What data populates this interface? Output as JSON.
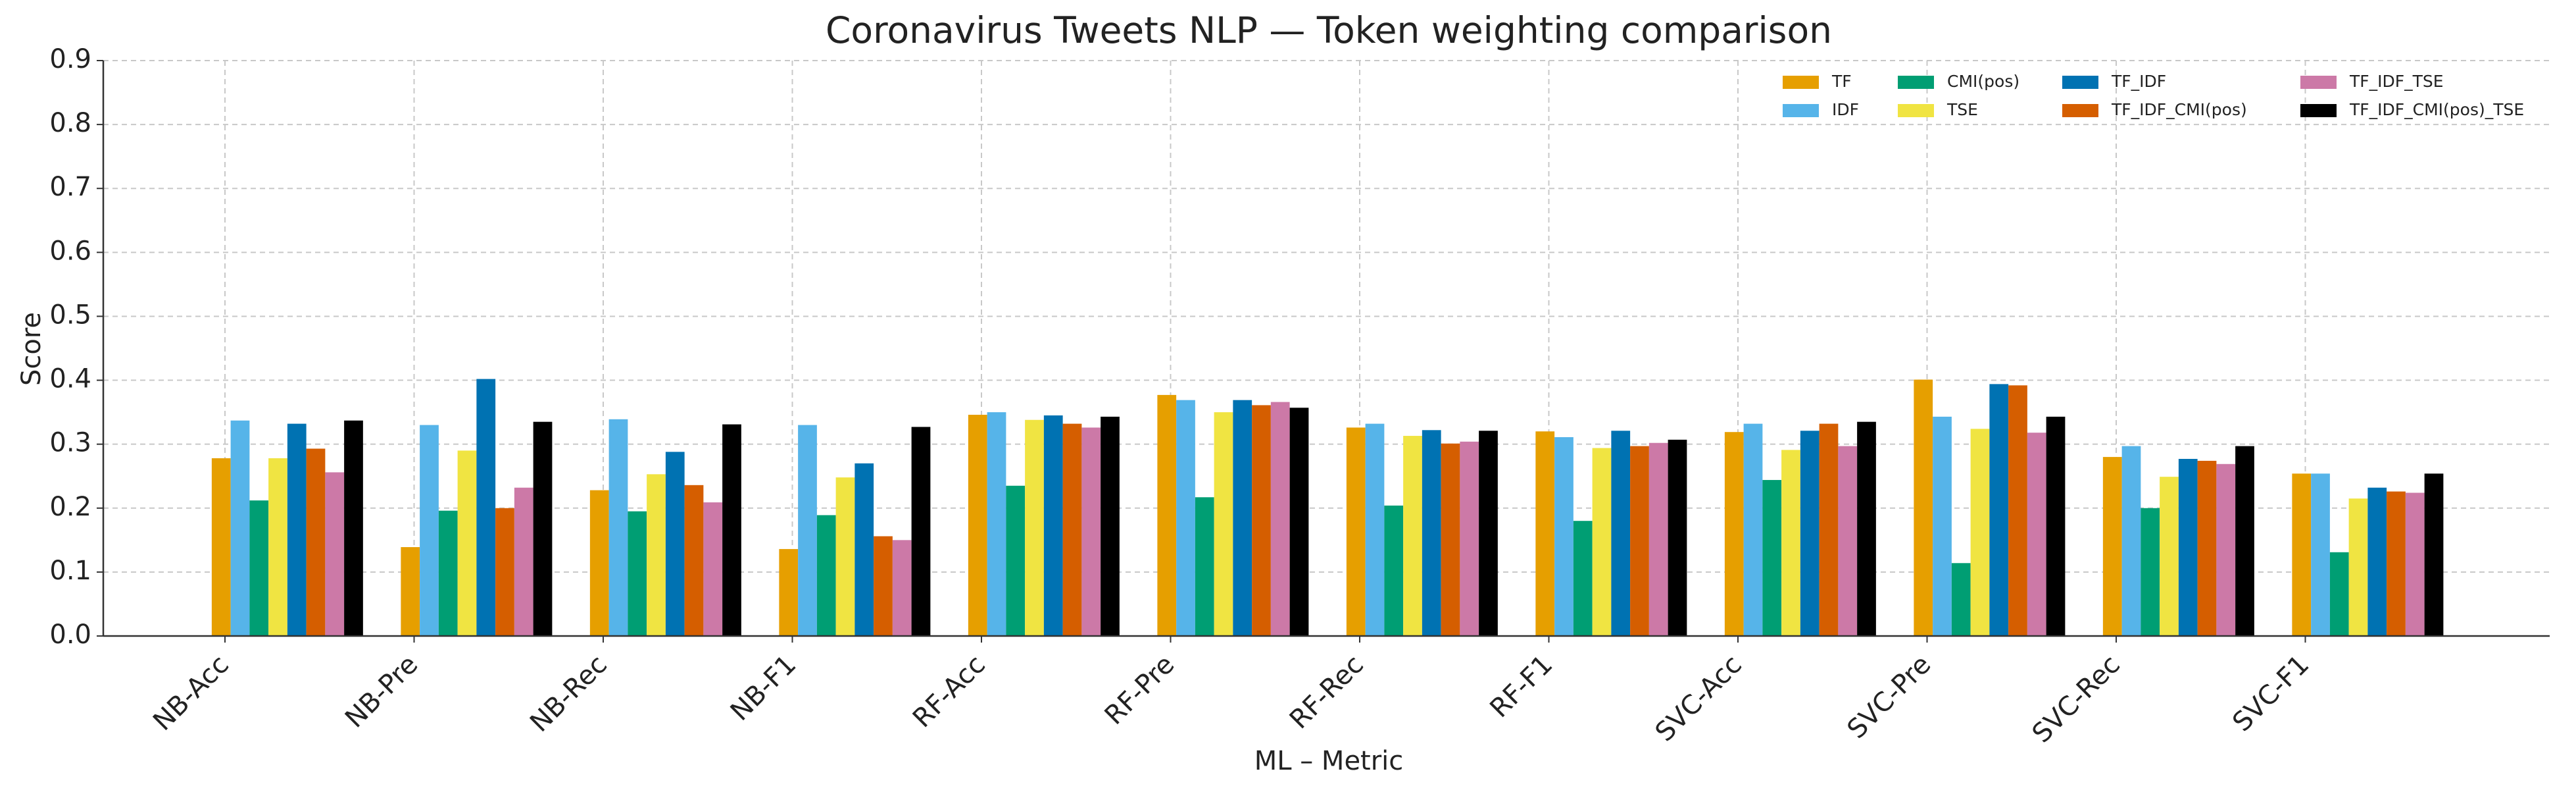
{
  "chart_data": {
    "type": "bar",
    "title": "Coronavirus Tweets NLP — Token weighting comparison",
    "x_label": "ML – Metric",
    "y_label": "Score",
    "categories": [
      "NB-Acc",
      "NB-Pre",
      "NB-Rec",
      "NB-F1",
      "RF-Acc",
      "RF-Pre",
      "RF-Rec",
      "RF-F1",
      "SVC-Acc",
      "SVC-Pre",
      "SVC-Rec",
      "SVC-F1"
    ],
    "series": [
      {
        "name": "TF",
        "color": "#E69F00",
        "values": [
          0.278,
          0.139,
          0.228,
          0.136,
          0.346,
          0.377,
          0.326,
          0.32,
          0.319,
          0.401,
          0.28,
          0.254
        ]
      },
      {
        "name": "IDF",
        "color": "#56B4E9",
        "values": [
          0.337,
          0.33,
          0.339,
          0.33,
          0.35,
          0.369,
          0.332,
          0.311,
          0.332,
          0.343,
          0.297,
          0.254
        ]
      },
      {
        "name": "CMI(pos)",
        "color": "#009E73",
        "values": [
          0.212,
          0.196,
          0.195,
          0.189,
          0.235,
          0.217,
          0.204,
          0.18,
          0.244,
          0.114,
          0.2,
          0.131
        ]
      },
      {
        "name": "TSE",
        "color": "#F0E442",
        "values": [
          0.278,
          0.29,
          0.253,
          0.248,
          0.338,
          0.35,
          0.313,
          0.294,
          0.291,
          0.324,
          0.249,
          0.215
        ]
      },
      {
        "name": "TF_IDF",
        "color": "#0072B2",
        "values": [
          0.332,
          0.402,
          0.288,
          0.27,
          0.345,
          0.369,
          0.322,
          0.321,
          0.321,
          0.394,
          0.277,
          0.232
        ]
      },
      {
        "name": "TF_IDF_CMI(pos)",
        "color": "#D55E00",
        "values": [
          0.293,
          0.2,
          0.236,
          0.156,
          0.332,
          0.361,
          0.301,
          0.297,
          0.332,
          0.392,
          0.274,
          0.226
        ]
      },
      {
        "name": "TF_IDF_TSE",
        "color": "#CC79A7",
        "values": [
          0.256,
          0.232,
          0.209,
          0.15,
          0.326,
          0.366,
          0.304,
          0.302,
          0.297,
          0.318,
          0.269,
          0.224
        ]
      },
      {
        "name": "TF_IDF_CMI(pos)_TSE",
        "color": "#000000",
        "values": [
          0.337,
          0.335,
          0.331,
          0.327,
          0.343,
          0.357,
          0.321,
          0.307,
          0.335,
          0.343,
          0.297,
          0.254
        ]
      }
    ],
    "ylim": [
      0,
      0.9
    ],
    "yticks": [
      {
        "value": 0,
        "label": "0.0"
      },
      0.1,
      0.2,
      0.3,
      0.4,
      0.5,
      0.6,
      0.7,
      0.8,
      0.9
    ],
    "grid": true,
    "legend_position": "upper right",
    "legend_columns": 4
  }
}
